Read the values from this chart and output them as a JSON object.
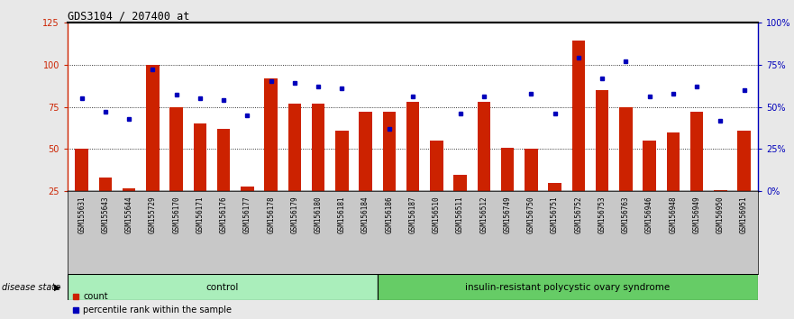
{
  "title": "GDS3104 / 207400_at",
  "samples": [
    "GSM155631",
    "GSM155643",
    "GSM155644",
    "GSM155729",
    "GSM156170",
    "GSM156171",
    "GSM156176",
    "GSM156177",
    "GSM156178",
    "GSM156179",
    "GSM156180",
    "GSM156181",
    "GSM156184",
    "GSM156186",
    "GSM156187",
    "GSM156510",
    "GSM156511",
    "GSM156512",
    "GSM156749",
    "GSM156750",
    "GSM156751",
    "GSM156752",
    "GSM156753",
    "GSM156763",
    "GSM156946",
    "GSM156948",
    "GSM156949",
    "GSM156950",
    "GSM156951"
  ],
  "counts": [
    50,
    33,
    27,
    100,
    75,
    65,
    62,
    28,
    92,
    77,
    77,
    61,
    72,
    72,
    78,
    55,
    35,
    78,
    51,
    50,
    30,
    114,
    85,
    75,
    55,
    60,
    72,
    26,
    61
  ],
  "percentile_ranks": [
    55,
    47,
    43,
    72,
    57,
    55,
    54,
    45,
    65,
    64,
    62,
    61,
    null,
    37,
    56,
    null,
    46,
    56,
    null,
    58,
    46,
    79,
    67,
    77,
    56,
    58,
    62,
    42,
    60
  ],
  "group_control_count": 13,
  "group_labels": [
    "control",
    "insulin-resistant polycystic ovary syndrome"
  ],
  "bar_color": "#cc2200",
  "percentile_color": "#0000bb",
  "left_axis_color": "#cc2200",
  "right_axis_color": "#0000bb",
  "ylim_left": [
    25,
    125
  ],
  "ylim_right": [
    0,
    100
  ],
  "yticks_left": [
    25,
    50,
    75,
    100,
    125
  ],
  "yticks_right": [
    0,
    25,
    50,
    75,
    100
  ],
  "ytick_labels_right": [
    "0%",
    "25%",
    "50%",
    "75%",
    "100%"
  ],
  "hlines": [
    50,
    75,
    100
  ],
  "plot_bg_color": "#ffffff",
  "ticklabel_bg_color": "#c8c8c8",
  "figure_bg_color": "#e8e8e8",
  "legend_items": [
    "count",
    "percentile rank within the sample"
  ],
  "disease_state_label": "disease state",
  "ctrl_green": "#aaeebb",
  "pcos_green": "#66cc66"
}
